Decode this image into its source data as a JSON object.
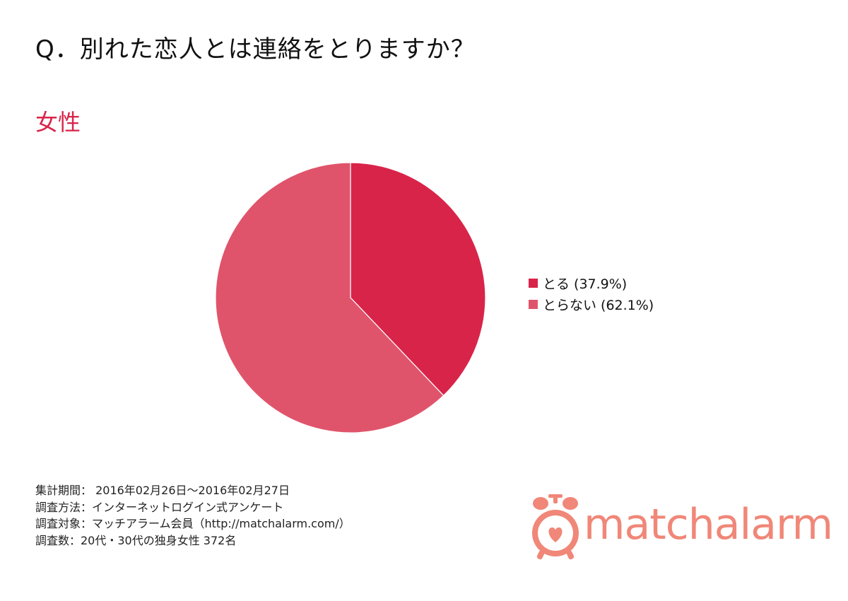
{
  "question": "Q．別れた恋人とは連絡をとりますか？",
  "segment": "女性",
  "chart_data": {
    "type": "pie",
    "categories": [
      "とる",
      "とらない"
    ],
    "values": [
      37.9,
      62.1
    ],
    "labels": [
      "とる (37.9%)",
      "とらない (62.1%)"
    ],
    "colors": [
      "#d9244a",
      "#e0546b"
    ],
    "start_angle": "12 o'clock",
    "direction": "clockwise",
    "legend": "right"
  },
  "footer": {
    "period": "集計期間： 2016年02月26日～2016年02月27日",
    "method": "調査方法：インターネットログイン式アンケート",
    "target": "調査対象：マッチアラーム会員（http://matchalarm.com/）",
    "count": "調査数：20代・30代の独身女性 372名"
  },
  "logo": {
    "text": "matchalarm",
    "color": "#f08778",
    "icon": "alarm-clock-heart-icon"
  }
}
